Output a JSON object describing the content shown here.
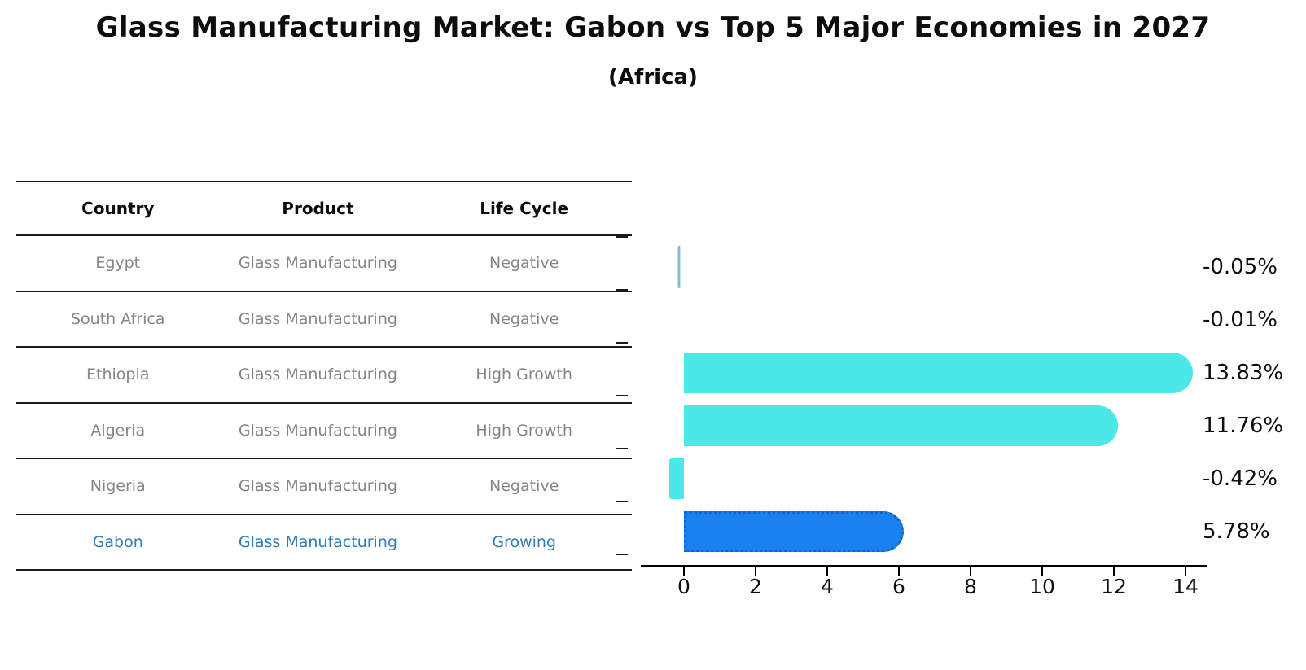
{
  "page": {
    "title": "Glass Manufacturing Market: Gabon vs Top 5 Major Economies in 2027",
    "subtitle": "(Africa)"
  },
  "table": {
    "headers": [
      "Country",
      "Product",
      "Life Cycle"
    ],
    "rows": [
      {
        "country": "Egypt",
        "product": "Glass Manufacturing",
        "life_cycle": "Negative",
        "highlight": false
      },
      {
        "country": "South Africa",
        "product": "Glass Manufacturing",
        "life_cycle": "Negative",
        "highlight": false
      },
      {
        "country": "Ethiopia",
        "product": "Glass Manufacturing",
        "life_cycle": "High Growth",
        "highlight": false
      },
      {
        "country": "Algeria",
        "product": "Glass Manufacturing",
        "life_cycle": "High Growth",
        "highlight": false
      },
      {
        "country": "Nigeria",
        "product": "Glass Manufacturing",
        "life_cycle": "Negative",
        "highlight": false
      },
      {
        "country": "Gabon",
        "product": "Glass Manufacturing",
        "life_cycle": "Growing",
        "highlight": true
      }
    ]
  },
  "chart_data": {
    "type": "bar",
    "orientation": "horizontal",
    "title": "Glass Manufacturing Market: Gabon vs Top 5 Major Economies in 2027",
    "subtitle": "(Africa)",
    "categories": [
      "Egypt",
      "South Africa",
      "Ethiopia",
      "Algeria",
      "Nigeria",
      "Gabon"
    ],
    "values": [
      -0.05,
      -0.01,
      13.83,
      11.76,
      -0.42,
      5.78
    ],
    "value_labels": [
      "-0.05%",
      "-0.01%",
      "13.83%",
      "11.76%",
      "-0.42%",
      "5.78%"
    ],
    "unit": "percent",
    "highlight": {
      "index": 5,
      "category": "Gabon"
    },
    "x_ticks": [
      0,
      2,
      4,
      6,
      8,
      10,
      12,
      14
    ],
    "xlim": [
      -0.9,
      14.6
    ],
    "grid": false,
    "legend": false,
    "colors": {
      "comparison_bar": "#4ae8e6",
      "highlight_bar": "#1982f0",
      "highlight_bar_edge": "#1263cf",
      "tiny_bar_core": "#7fb9cf",
      "muted_text": "#858585",
      "highlight_text": "#2e7bb5",
      "dark_text": "#0d0d0d",
      "axis": "#000000"
    }
  }
}
